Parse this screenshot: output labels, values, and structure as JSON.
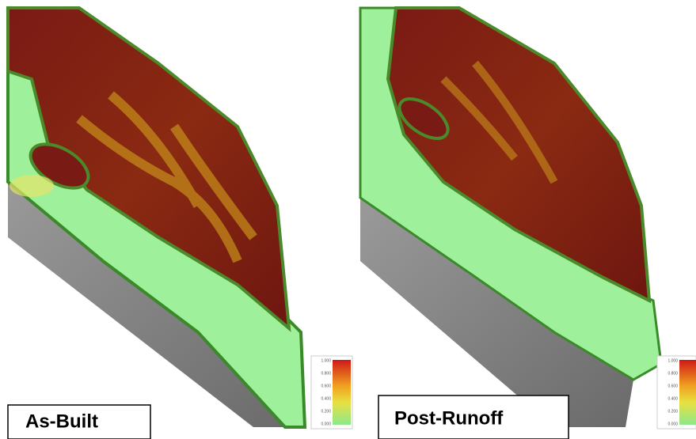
{
  "panels": [
    {
      "label": "As-Built",
      "scale": {
        "ticks": [
          "1.000",
          "0.800",
          "0.600",
          "0.400",
          "0.200",
          "0.000"
        ]
      }
    },
    {
      "label": "Post-Runoff",
      "scale": {
        "ticks": [
          "1.000",
          "0.800",
          "0.600",
          "0.400",
          "0.200",
          "0.000"
        ]
      }
    }
  ]
}
